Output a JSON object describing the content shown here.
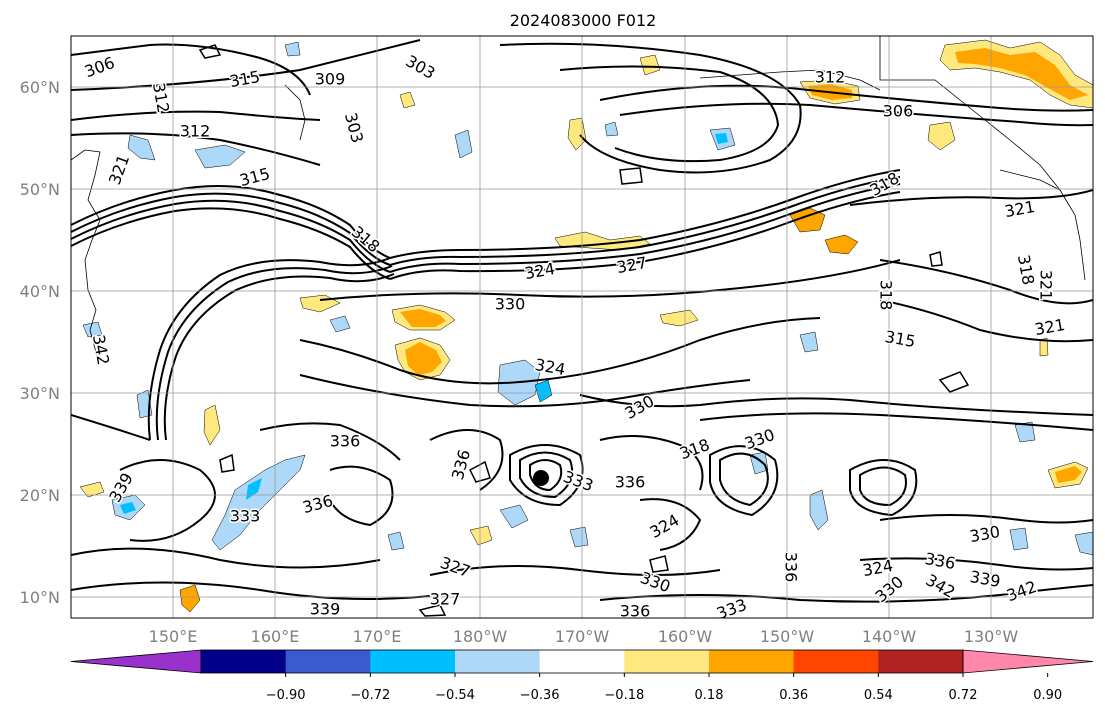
{
  "title": "2024083000 F012",
  "map": {
    "lat_labels": [
      "60°N",
      "50°N",
      "40°N",
      "30°N",
      "20°N",
      "10°N"
    ],
    "lon_labels": [
      "150°E",
      "160°E",
      "170°E",
      "180°W",
      "170°W",
      "160°W",
      "150°W",
      "140°W",
      "130°W"
    ],
    "contour_labels": [
      "306",
      "315",
      "309",
      "303",
      "312",
      "303",
      "306",
      "312",
      "315",
      "318",
      "318",
      "321",
      "321",
      "318",
      "324",
      "327",
      "330",
      "324",
      "321",
      "318",
      "315",
      "342",
      "336",
      "327",
      "330",
      "330",
      "318",
      "336",
      "339",
      "339",
      "333",
      "336",
      "327",
      "333",
      "336",
      "330",
      "336",
      "324",
      "330",
      "333",
      "336",
      "324",
      "342",
      "339",
      "342",
      "336",
      "330",
      "321",
      "312"
    ],
    "center_marker": "storm-center"
  },
  "colorbar": {
    "tick_labels": [
      "−0.90",
      "−0.72",
      "−0.54",
      "−0.36",
      "−0.18",
      "0.18",
      "0.36",
      "0.54",
      "0.72",
      "0.90"
    ],
    "colors": [
      "#9932CC",
      "#00008B",
      "#3A5BCF",
      "#00BFFF",
      "#ADD8F7",
      "#FFFFFF",
      "#FFE97F",
      "#FFA500",
      "#FF4500",
      "#B22222",
      "#FF88AA"
    ]
  }
}
